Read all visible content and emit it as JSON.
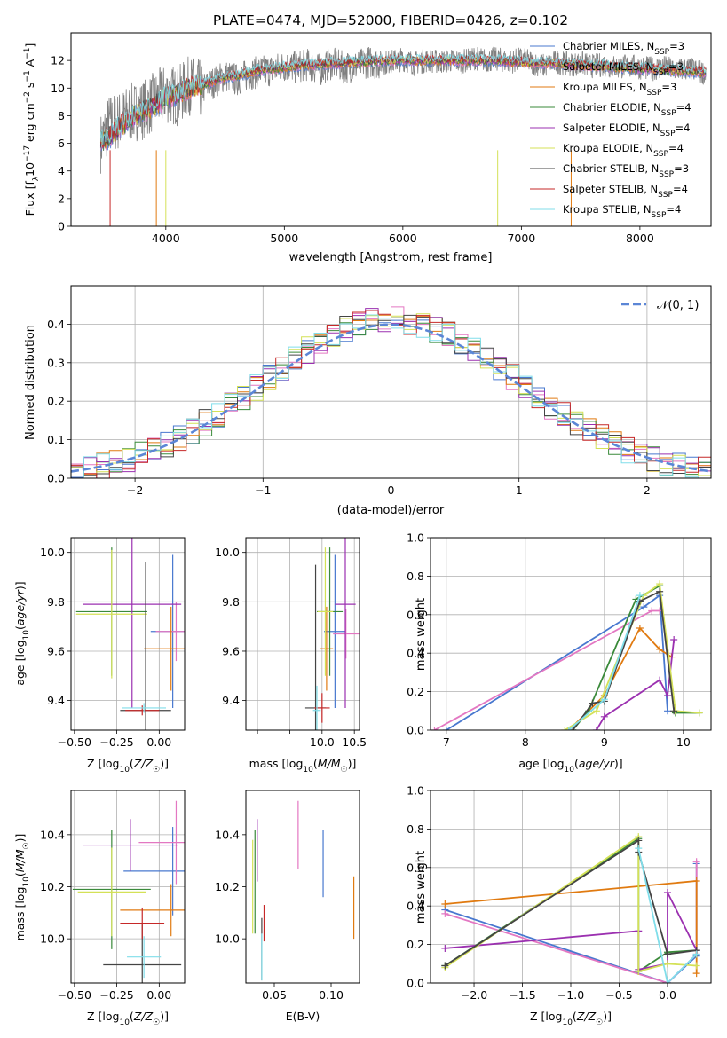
{
  "figure": {
    "title": "PLATE=0474, MJD=52000, FIBERID=0426, z=0.102"
  },
  "chart_data": [
    {
      "id": "spectrum",
      "type": "line",
      "title": "PLATE=0474, MJD=52000, FIBERID=0426, z=0.102",
      "xlabel": "wavelength [Angstrom, rest frame]",
      "ylabel": "Flux [f_λ10^-17 erg cm^-2 s^-1 A^-1]",
      "xlim": [
        3200,
        8600
      ],
      "ylim": [
        0,
        14
      ],
      "xticks": [
        4000,
        5000,
        6000,
        7000,
        8000
      ],
      "yticks": [
        0,
        2,
        4,
        6,
        8,
        10,
        12
      ],
      "grid": false,
      "legend_position": "right",
      "observed": {
        "color": "#808080",
        "x": [
          3450,
          3520,
          3600,
          3700,
          3800,
          3900,
          4000,
          4100,
          4200,
          4300,
          4400,
          4500,
          4600,
          4700,
          4800,
          4900,
          5000,
          5100,
          5200,
          5300,
          5400,
          5500,
          5600,
          5700,
          5800,
          5900,
          6000,
          6100,
          6200,
          6300,
          6400,
          6500,
          6600,
          6700,
          6800,
          6900,
          7000,
          7100,
          7200,
          7300,
          7400,
          7500,
          7600,
          7700,
          7800,
          7900,
          8000,
          8100,
          8200,
          8300,
          8400,
          8500,
          8560
        ],
        "y": [
          6.0,
          7.4,
          7.6,
          8.2,
          8.4,
          9.0,
          9.6,
          9.4,
          10.2,
          9.9,
          10.4,
          10.9,
          10.6,
          11.0,
          11.2,
          11.3,
          11.6,
          11.5,
          11.7,
          11.3,
          11.8,
          11.5,
          11.6,
          11.9,
          11.8,
          11.9,
          12.1,
          11.8,
          12.0,
          11.9,
          12.0,
          11.9,
          12.2,
          12.0,
          12.1,
          11.9,
          12.1,
          11.8,
          11.6,
          11.9,
          11.7,
          11.8,
          11.6,
          11.7,
          11.5,
          11.6,
          11.5,
          11.4,
          11.5,
          11.3,
          11.4,
          11.2,
          11.1
        ]
      },
      "series": [
        {
          "name": "Chabrier MILES, N_SSP=3",
          "color": "#4878cf"
        },
        {
          "name": "Salpeter MILES, N_SSP=3",
          "color": "#e377c2"
        },
        {
          "name": "Kroupa MILES, N_SSP=3",
          "color": "#e07a10"
        },
        {
          "name": "Chabrier ELODIE, N_SSP=4",
          "color": "#3a8a3a"
        },
        {
          "name": "Salpeter ELODIE, N_SSP=4",
          "color": "#9b30b0"
        },
        {
          "name": "Kroupa ELODIE, N_SSP=4",
          "color": "#d4e157"
        },
        {
          "name": "Chabrier STELIB, N_SSP=3",
          "color": "#444444"
        },
        {
          "name": "Salpeter STELIB, N_SSP=4",
          "color": "#c62828"
        },
        {
          "name": "Kroupa STELIB, N_SSP=4",
          "color": "#80deea"
        }
      ],
      "model": {
        "x": [
          3450,
          3520,
          3600,
          3700,
          3800,
          3900,
          4000,
          4100,
          4200,
          4300,
          4400,
          4500,
          4600,
          4700,
          4800,
          4900,
          5000,
          5100,
          5200,
          5300,
          5400,
          5500,
          5600,
          5700,
          5800,
          5900,
          6000,
          6100,
          6200,
          6300,
          6400,
          6500,
          6600,
          6700,
          6800,
          6900,
          7000,
          7100,
          7200,
          7300,
          7400,
          7500,
          7600,
          7700,
          7800,
          7900,
          8000,
          8100,
          8200,
          8300,
          8400,
          8500,
          8560
        ],
        "y": [
          6.1,
          6.4,
          7.1,
          7.8,
          8.3,
          8.7,
          9.3,
          9.6,
          10.0,
          10.2,
          10.5,
          10.8,
          10.9,
          11.1,
          11.3,
          11.4,
          11.5,
          11.6,
          11.7,
          11.7,
          11.8,
          11.8,
          11.9,
          11.9,
          12.0,
          12.0,
          12.0,
          12.0,
          12.0,
          12.0,
          12.0,
          12.0,
          12.0,
          12.0,
          12.0,
          11.9,
          11.9,
          11.8,
          11.8,
          11.8,
          11.7,
          11.7,
          11.6,
          11.6,
          11.5,
          11.5,
          11.4,
          11.4,
          11.3,
          11.3,
          11.2,
          11.2,
          11.1
        ]
      }
    },
    {
      "id": "residuals",
      "type": "step",
      "xlabel": "(data-model)/error",
      "ylabel": "Normed distribution",
      "xlim": [
        -2.5,
        2.5
      ],
      "ylim": [
        0,
        0.5
      ],
      "xticks": [
        -2,
        -1,
        0,
        1,
        2
      ],
      "xtick_labels": [
        "−2",
        "−1",
        "0",
        "1",
        "2"
      ],
      "yticks": [
        0.0,
        0.1,
        0.2,
        0.3,
        0.4
      ],
      "grid": true,
      "legend_position": "top-right",
      "bins": [
        -2.5,
        2.5,
        50
      ],
      "reference": {
        "name": "𝒩(0, 1)",
        "color": "#5b86d6"
      }
    },
    {
      "id": "age_vs_Z",
      "type": "errorbar",
      "xlabel": "Z [log10(Z/Z☉)]",
      "ylabel": "age  [log10(age/yr)]",
      "xlim": [
        -0.52,
        0.15
      ],
      "ylim": [
        9.28,
        10.06
      ],
      "xticks": [
        -0.5,
        -0.25,
        0.0
      ],
      "xtick_labels": [
        "−0.50",
        "−0.25",
        "0.00"
      ],
      "yticks": [
        9.4,
        9.6,
        9.8,
        10.0
      ],
      "grid": true,
      "points": [
        {
          "x": 0.08,
          "y": 9.68,
          "xerr": 0.13,
          "yerr": 0.31,
          "color": "#4878cf"
        },
        {
          "x": 0.1,
          "y": 9.68,
          "xerr": 0.12,
          "yerr": 0.12,
          "color": "#e377c2"
        },
        {
          "x": 0.07,
          "y": 9.61,
          "xerr": 0.16,
          "yerr": 0.17,
          "color": "#e07a10"
        },
        {
          "x": -0.28,
          "y": 9.76,
          "xerr": 0.21,
          "yerr": 0.26,
          "color": "#3a8a3a"
        },
        {
          "x": -0.16,
          "y": 9.79,
          "xerr": 0.29,
          "yerr": 0.42,
          "color": "#9b30b0"
        },
        {
          "x": -0.28,
          "y": 9.75,
          "xerr": 0.21,
          "yerr": 0.26,
          "color": "#d4e157"
        },
        {
          "x": -0.08,
          "y": 9.36,
          "xerr": 0.15,
          "yerr": 0.6,
          "color": "#444444"
        },
        {
          "x": -0.1,
          "y": 9.36,
          "xerr": 0.1,
          "yerr": 0.02,
          "color": "#c62828"
        },
        {
          "x": -0.09,
          "y": 9.37,
          "xerr": 0.13,
          "yerr": 0.02,
          "color": "#80deea"
        }
      ]
    },
    {
      "id": "age_vs_mass",
      "type": "errorbar",
      "xlabel": "mass [log10(M/M☉)]",
      "ylabel": "",
      "xlim": [
        8.82,
        10.58
      ],
      "ylim": [
        9.28,
        10.06
      ],
      "xticks": [
        9.0,
        9.5,
        10.0,
        10.5
      ],
      "xtick_labels": [
        "",
        "",
        "10.0",
        "10.5"
      ],
      "yticks": [
        9.4,
        9.6,
        9.8,
        10.0
      ],
      "grid": true,
      "points": [
        {
          "x": 10.2,
          "y": 9.68,
          "xerr": 0.17,
          "yerr": 0.31,
          "color": "#4878cf"
        },
        {
          "x": 10.37,
          "y": 9.67,
          "xerr": 0.2,
          "yerr": 0.1,
          "color": "#e377c2"
        },
        {
          "x": 10.07,
          "y": 9.61,
          "xerr": 0.1,
          "yerr": 0.17,
          "color": "#e07a10"
        },
        {
          "x": 10.12,
          "y": 9.76,
          "xerr": 0.2,
          "yerr": 0.26,
          "color": "#3a8a3a"
        },
        {
          "x": 10.36,
          "y": 9.79,
          "xerr": 0.16,
          "yerr": 0.42,
          "color": "#9b30b0"
        },
        {
          "x": 10.05,
          "y": 9.76,
          "xerr": 0.12,
          "yerr": 0.26,
          "color": "#d4e157"
        },
        {
          "x": 9.9,
          "y": 9.37,
          "xerr": 0.16,
          "yerr": 0.58,
          "color": "#444444"
        },
        {
          "x": 10.0,
          "y": 9.37,
          "xerr": 0.12,
          "yerr": 0.06,
          "color": "#c62828"
        },
        {
          "x": 9.92,
          "y": 9.36,
          "xerr": 0.06,
          "yerr": 0.1,
          "color": "#80deea"
        }
      ]
    },
    {
      "id": "massweight_vs_age",
      "type": "line",
      "xlabel": "age  [log10(age/yr)]",
      "ylabel": "mass weight",
      "xlim": [
        6.8,
        10.35
      ],
      "ylim": [
        0,
        1.0
      ],
      "xticks": [
        7,
        8,
        9,
        10
      ],
      "yticks": [
        0.0,
        0.2,
        0.4,
        0.6,
        0.8,
        1.0
      ],
      "grid": true,
      "series": [
        {
          "color": "#4878cf",
          "x": [
            7.0,
            9.5,
            9.7,
            9.8
          ],
          "y": [
            0.0,
            0.64,
            0.7,
            0.1
          ]
        },
        {
          "color": "#e377c2",
          "x": [
            6.85,
            9.6,
            9.7
          ],
          "y": [
            0.0,
            0.62,
            0.62
          ]
        },
        {
          "color": "#e07a10",
          "x": [
            8.55,
            9.0,
            9.45,
            9.7,
            9.85
          ],
          "y": [
            0.0,
            0.18,
            0.53,
            0.42,
            0.38
          ]
        },
        {
          "color": "#3a8a3a",
          "x": [
            8.6,
            8.8,
            9.4,
            9.7,
            9.9,
            10.2
          ],
          "y": [
            0.0,
            0.1,
            0.68,
            0.75,
            0.09,
            0.09
          ]
        },
        {
          "color": "#9b30b0",
          "x": [
            8.9,
            9.0,
            9.7,
            9.8,
            9.88
          ],
          "y": [
            0.0,
            0.07,
            0.26,
            0.18,
            0.47
          ]
        },
        {
          "color": "#d4e157",
          "x": [
            8.5,
            8.9,
            9.5,
            9.7,
            9.9,
            10.2
          ],
          "y": [
            0.0,
            0.1,
            0.7,
            0.76,
            0.1,
            0.09
          ]
        },
        {
          "color": "#444444",
          "x": [
            8.6,
            8.85,
            9.0,
            9.45,
            9.7,
            9.88
          ],
          "y": [
            0.0,
            0.14,
            0.15,
            0.67,
            0.72,
            0.1
          ]
        },
        {
          "color": "#80deea",
          "x": [
            8.55,
            9.0,
            9.45
          ],
          "y": [
            0.0,
            0.16,
            0.7
          ]
        }
      ]
    },
    {
      "id": "mass_vs_Z",
      "type": "errorbar",
      "xlabel": "Z [log10(Z/Z☉)]",
      "ylabel": "mass [log10(M/M☉)]",
      "xlim": [
        -0.52,
        0.15
      ],
      "ylim": [
        9.83,
        10.57
      ],
      "xticks": [
        -0.5,
        -0.25,
        0.0
      ],
      "xtick_labels": [
        "−0.50",
        "−0.25",
        "0.00"
      ],
      "yticks": [
        10.0,
        10.2,
        10.4
      ],
      "grid": true,
      "points": [
        {
          "x": 0.08,
          "y": 10.26,
          "xerr": 0.29,
          "yerr": 0.17,
          "color": "#4878cf"
        },
        {
          "x": 0.1,
          "y": 10.37,
          "xerr": 0.22,
          "yerr": 0.16,
          "color": "#e377c2"
        },
        {
          "x": 0.07,
          "y": 10.11,
          "xerr": 0.3,
          "yerr": 0.1,
          "color": "#e07a10"
        },
        {
          "x": -0.28,
          "y": 10.19,
          "xerr": 0.23,
          "yerr": 0.23,
          "color": "#3a8a3a"
        },
        {
          "x": -0.17,
          "y": 10.36,
          "xerr": 0.28,
          "yerr": 0.1,
          "color": "#9b30b0"
        },
        {
          "x": -0.28,
          "y": 10.18,
          "xerr": 0.2,
          "yerr": 0.17,
          "color": "#d4e157"
        },
        {
          "x": -0.1,
          "y": 9.9,
          "xerr": 0.23,
          "yerr": 0.16,
          "color": "#444444"
        },
        {
          "x": -0.1,
          "y": 10.06,
          "xerr": 0.13,
          "yerr": 0.06,
          "color": "#c62828"
        },
        {
          "x": -0.09,
          "y": 9.93,
          "xerr": 0.1,
          "yerr": 0.08,
          "color": "#80deea"
        }
      ]
    },
    {
      "id": "mass_vs_EBV",
      "type": "errorbar",
      "xlabel": "E(B-V)",
      "ylabel": "",
      "xlim": [
        0.025,
        0.125
      ],
      "ylim": [
        9.83,
        10.57
      ],
      "xticks": [
        0.05,
        0.1
      ],
      "xtick_labels": [
        "0.05",
        "0.10"
      ],
      "yticks": [
        10.0,
        10.2,
        10.4
      ],
      "grid": false,
      "points": [
        {
          "x": 0.093,
          "y": 10.29,
          "yerr": 0.13,
          "color": "#4878cf"
        },
        {
          "x": 0.071,
          "y": 10.4,
          "yerr": 0.13,
          "color": "#e377c2"
        },
        {
          "x": 0.12,
          "y": 10.12,
          "yerr": 0.12,
          "color": "#e07a10"
        },
        {
          "x": 0.033,
          "y": 10.22,
          "yerr": 0.2,
          "color": "#3a8a3a"
        },
        {
          "x": 0.035,
          "y": 10.34,
          "yerr": 0.12,
          "color": "#9b30b0"
        },
        {
          "x": 0.031,
          "y": 10.2,
          "yerr": 0.18,
          "color": "#d4e157"
        },
        {
          "x": 0.039,
          "y": 9.96,
          "yerr": 0.12,
          "color": "#444444"
        },
        {
          "x": 0.041,
          "y": 10.06,
          "yerr": 0.07,
          "color": "#c62828"
        },
        {
          "x": 0.039,
          "y": 9.93,
          "yerr": 0.09,
          "color": "#80deea"
        }
      ]
    },
    {
      "id": "massweight_vs_Z",
      "type": "line",
      "xlabel": "Z [log10(Z/Z☉)]",
      "ylabel": "mass weight",
      "xlim": [
        -2.45,
        0.45
      ],
      "ylim": [
        0,
        1.0
      ],
      "xticks": [
        -2.0,
        -1.5,
        -1.0,
        -0.5,
        0.0
      ],
      "xtick_labels": [
        "−2.0",
        "−1.5",
        "−1.0",
        "−0.5",
        "0.0"
      ],
      "yticks": [
        0.0,
        0.2,
        0.4,
        0.6,
        0.8,
        1.0
      ],
      "grid": true,
      "series": [
        {
          "color": "#4878cf",
          "x": [
            -2.3,
            0.0,
            0.3,
            0.3
          ],
          "y": [
            0.38,
            0.0,
            0.14,
            0.62
          ]
        },
        {
          "color": "#e377c2",
          "x": [
            -2.3,
            0.0,
            0.3,
            0.3
          ],
          "y": [
            0.36,
            0.0,
            0.15,
            0.63
          ]
        },
        {
          "color": "#e07a10",
          "x": [
            -2.3,
            0.3,
            0.3
          ],
          "y": [
            0.41,
            0.53,
            0.05
          ]
        },
        {
          "color": "#3a8a3a",
          "x": [
            -2.3,
            -0.3,
            -0.3,
            0.0,
            0.3
          ],
          "y": [
            0.09,
            0.75,
            0.06,
            0.16,
            0.17
          ]
        },
        {
          "color": "#9b30b0",
          "x": [
            -2.3,
            -0.3,
            -0.3,
            0.0,
            0.0,
            0.3
          ],
          "y": [
            0.18,
            0.27,
            0.07,
            0.1,
            0.47,
            0.17
          ]
        },
        {
          "color": "#d4e157",
          "x": [
            -2.3,
            -0.3,
            -0.3,
            0.0,
            0.3
          ],
          "y": [
            0.08,
            0.76,
            0.06,
            0.1,
            0.09
          ]
        },
        {
          "color": "#444444",
          "x": [
            -2.3,
            -0.3,
            -0.3,
            0.0,
            0.3
          ],
          "y": [
            0.09,
            0.74,
            0.68,
            0.15,
            0.17
          ]
        },
        {
          "color": "#80deea",
          "x": [
            -0.3,
            0.0,
            0.3
          ],
          "y": [
            0.7,
            0.0,
            0.15
          ]
        }
      ]
    }
  ]
}
